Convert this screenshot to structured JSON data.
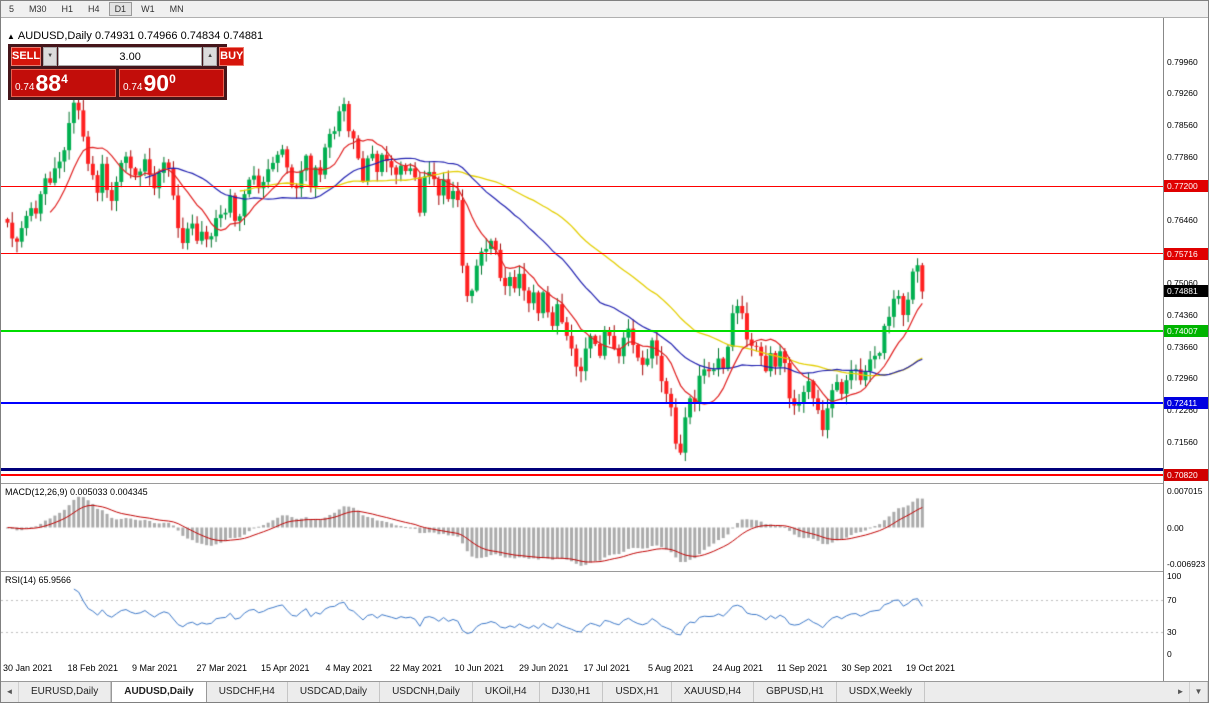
{
  "toolbar": {
    "timeframes": [
      "5",
      "M30",
      "H1",
      "H4",
      "D1",
      "W1",
      "MN"
    ],
    "active": "D1"
  },
  "chart": {
    "title_arrow": "▲",
    "symbol_label": "AUDUSD,Daily",
    "ohlc": "0.74931 0.74966 0.74834 0.74881"
  },
  "trade_panel": {
    "sell_label": "SELL",
    "buy_label": "BUY",
    "volume": "3.00",
    "vol_down_glyph": "▼",
    "vol_up_glyph": "▲",
    "sell_price": {
      "prefix": "0.74",
      "big": "88",
      "sup": "4"
    },
    "buy_price": {
      "prefix": "0.74",
      "big": "90",
      "sup": "0"
    }
  },
  "price_axis": {
    "labels": [
      "0.79960",
      "0.79260",
      "0.78560",
      "0.77860",
      "0.77160",
      "0.76460",
      "0.75760",
      "0.75060",
      "0.74360",
      "0.73660",
      "0.72960",
      "0.72260",
      "0.71560"
    ]
  },
  "current_price": {
    "value": "0.74881",
    "badge_bg": "#000000"
  },
  "levels": [
    {
      "value": "0.77200",
      "price": 0.772,
      "color": "#ff0000",
      "badge_bg": "#e00000",
      "thickness": 1
    },
    {
      "value": "0.75716",
      "price": 0.75716,
      "color": "#ff0000",
      "badge_bg": "#e00000",
      "thickness": 1
    },
    {
      "value": "0.74007",
      "price": 0.74007,
      "color": "#00dd00",
      "badge_bg": "#00b400",
      "thickness": 2
    },
    {
      "value": "0.72411",
      "price": 0.72411,
      "color": "#0000ff",
      "badge_bg": "#0000e0",
      "thickness": 2
    },
    {
      "value": "",
      "price": 0.7096,
      "color": "#00007b",
      "badge_bg": "",
      "thickness": 3
    },
    {
      "value": "0.70820",
      "price": 0.7082,
      "color": "#ff0000",
      "badge_bg": "#d00000",
      "thickness": 2
    }
  ],
  "macd": {
    "label": "MACD(12,26,9) 0.005033 0.004345",
    "axis": [
      "0.007015",
      "0.00",
      "-0.006923"
    ]
  },
  "rsi": {
    "label": "RSI(14) 65.9566",
    "axis": [
      "100",
      "70",
      "30",
      "0"
    ]
  },
  "dates": [
    "30 Jan 2021",
    "18 Feb 2021",
    "9 Mar 2021",
    "27 Mar 2021",
    "15 Apr 2021",
    "4 May 2021",
    "22 May 2021",
    "10 Jun 2021",
    "29 Jun 2021",
    "17 Jul 2021",
    "5 Aug 2021",
    "24 Aug 2021",
    "11 Sep 2021",
    "30 Sep 2021",
    "19 Oct 2021"
  ],
  "tabs": {
    "scroll_left": "◄",
    "scroll_right": "►",
    "menu": "▼",
    "items": [
      "EURUSD,Daily",
      "AUDUSD,Daily",
      "USDCHF,H4",
      "USDCAD,Daily",
      "USDCNH,Daily",
      "UKOil,H4",
      "DJ30,H1",
      "USDX,H1",
      "XAUUSD,H4",
      "GBPUSD,H1",
      "USDX,Weekly"
    ],
    "active": "AUDUSD,Daily"
  },
  "chart_data": {
    "type": "candlestick",
    "symbol": "AUDUSD",
    "timeframe": "Daily",
    "visible_price_range": [
      0.7065,
      0.8092
    ],
    "horizontal_levels": [
      0.772,
      0.75716,
      0.74007,
      0.72411,
      0.7082
    ],
    "indicators": {
      "ma_fast_color": "#e02020",
      "ma_mid_color": "#2020b0",
      "ma_slow_color": "#e3ce00",
      "macd": "12,26,9",
      "rsi_period": 14,
      "rsi_last": 65.9566,
      "macd_last": 0.005033,
      "macd_signal_last": 0.004345
    },
    "closes": [
      0.764,
      0.7605,
      0.7598,
      0.7628,
      0.7655,
      0.7672,
      0.766,
      0.7703,
      0.7738,
      0.7728,
      0.776,
      0.7775,
      0.78,
      0.786,
      0.7905,
      0.7888,
      0.783,
      0.777,
      0.7745,
      0.7706,
      0.777,
      0.7712,
      0.7688,
      0.773,
      0.7772,
      0.7786,
      0.776,
      0.7744,
      0.7753,
      0.778,
      0.7746,
      0.7716,
      0.775,
      0.7773,
      0.776,
      0.77,
      0.7628,
      0.7595,
      0.7627,
      0.7638,
      0.76,
      0.762,
      0.7603,
      0.761,
      0.765,
      0.7658,
      0.7662,
      0.77,
      0.7644,
      0.7654,
      0.7703,
      0.7735,
      0.7744,
      0.7716,
      0.773,
      0.7758,
      0.7772,
      0.779,
      0.7802,
      0.7762,
      0.7722,
      0.7716,
      0.7755,
      0.7788,
      0.7718,
      0.7762,
      0.7746,
      0.7806,
      0.7836,
      0.7842,
      0.7886,
      0.7902,
      0.7842,
      0.7826,
      0.7782,
      0.7732,
      0.7782,
      0.7792,
      0.7752,
      0.779,
      0.7776,
      0.7762,
      0.7746,
      0.7766,
      0.7754,
      0.776,
      0.774,
      0.7662,
      0.7742,
      0.7752,
      0.7736,
      0.77,
      0.7736,
      0.7692,
      0.771,
      0.769,
      0.7545,
      0.7478,
      0.749,
      0.7545,
      0.7576,
      0.7582,
      0.76,
      0.758,
      0.7518,
      0.75,
      0.752,
      0.7495,
      0.7527,
      0.749,
      0.7462,
      0.7486,
      0.744,
      0.7486,
      0.7442,
      0.7412,
      0.746,
      0.742,
      0.739,
      0.7362,
      0.7322,
      0.7312,
      0.7362,
      0.739,
      0.7372,
      0.7346,
      0.7402,
      0.739,
      0.7362,
      0.7345,
      0.7386,
      0.7406,
      0.737,
      0.7342,
      0.7326,
      0.734,
      0.738,
      0.7346,
      0.729,
      0.7262,
      0.7232,
      0.7152,
      0.7132,
      0.721,
      0.7252,
      0.7242,
      0.7302,
      0.7316,
      0.7312,
      0.7316,
      0.734,
      0.7318,
      0.7366,
      0.744,
      0.7456,
      0.744,
      0.7382,
      0.7368,
      0.7366,
      0.7346,
      0.7312,
      0.7352,
      0.7322,
      0.7356,
      0.733,
      0.7252,
      0.7236,
      0.7242,
      0.7266,
      0.729,
      0.7252,
      0.7226,
      0.7182,
      0.723,
      0.727,
      0.7288,
      0.7262,
      0.7292,
      0.7312,
      0.7316,
      0.7292,
      0.7312,
      0.7338,
      0.7346,
      0.7352,
      0.7412,
      0.7432,
      0.7472,
      0.7478,
      0.7436,
      0.747,
      0.7532,
      0.7546,
      0.7488
    ]
  }
}
